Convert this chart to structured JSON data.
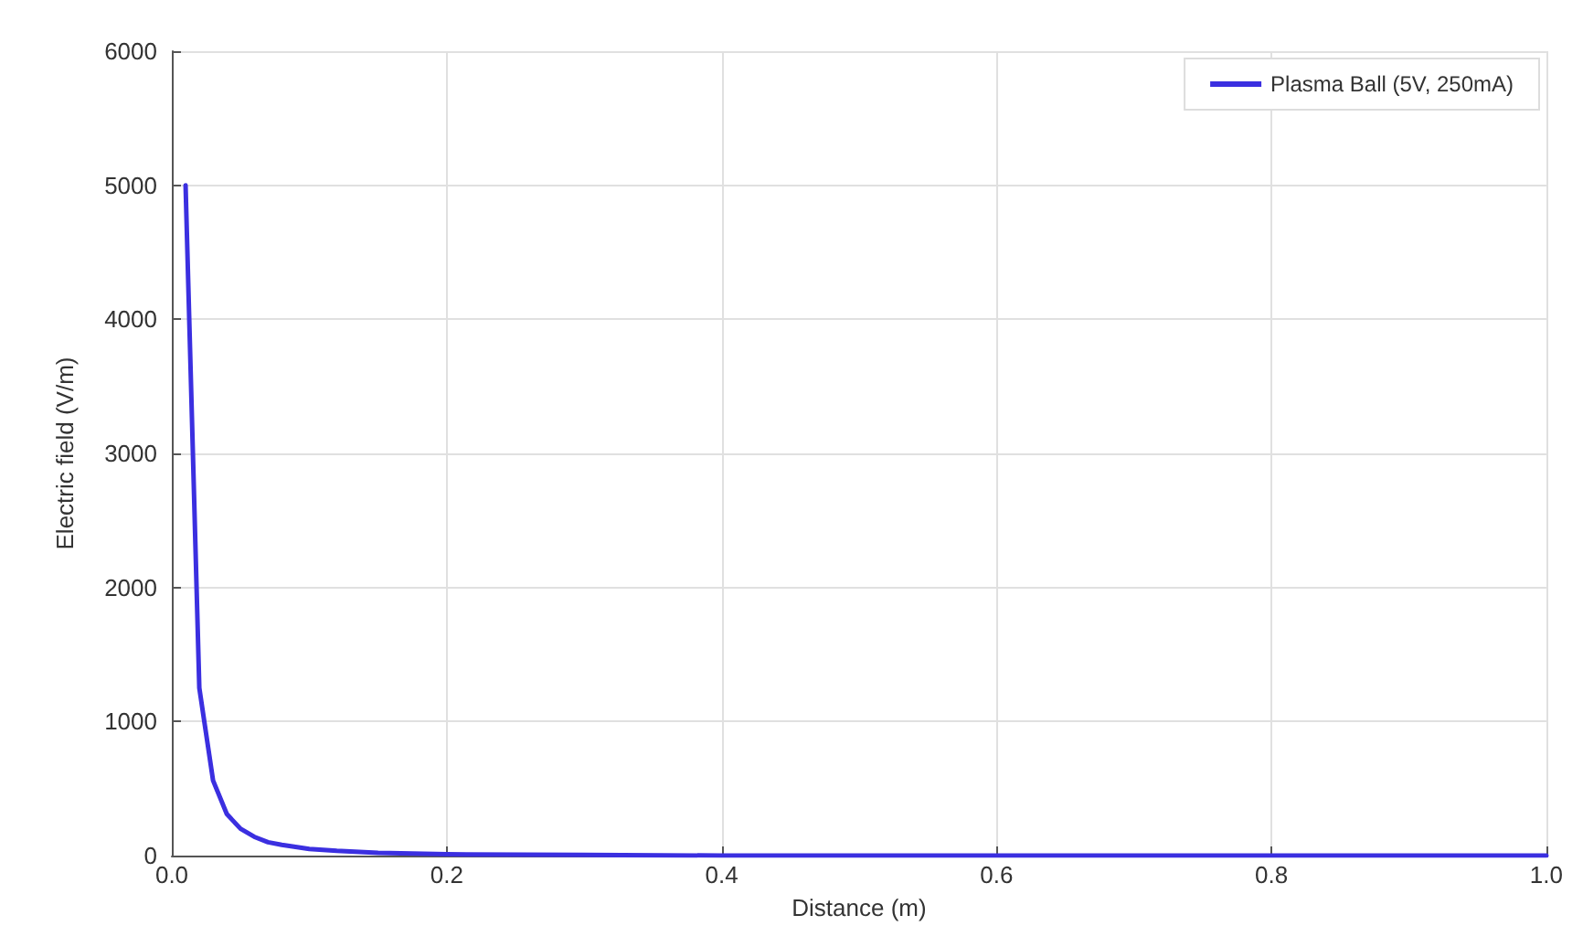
{
  "chart_data": {
    "type": "line",
    "xlabel": "Distance (m)",
    "ylabel": "Electric field (V/m)",
    "x": [
      0.01,
      0.02,
      0.03,
      0.04,
      0.05,
      0.06,
      0.07,
      0.08,
      0.1,
      0.12,
      0.15,
      0.2,
      0.3,
      0.4,
      0.6,
      0.8,
      1.0
    ],
    "series": [
      {
        "name": "Plasma Ball (5V, 250mA)",
        "color": "#3b2fe0",
        "values": [
          5000,
          1250,
          560,
          310,
          200,
          140,
          100,
          80,
          50,
          35,
          20,
          10,
          5,
          0,
          0,
          0,
          0
        ]
      }
    ],
    "xlim": [
      0,
      1
    ],
    "xticks": [
      {
        "value": 0,
        "label": "0.0"
      },
      0.2,
      0.4,
      0.6,
      0.8,
      {
        "value": 1,
        "label": "1.0"
      }
    ],
    "ylim": [
      0,
      6000
    ],
    "yticks": [
      0,
      1000,
      2000,
      3000,
      4000,
      5000,
      6000
    ],
    "grid": true,
    "legend": "top right",
    "marker": "none",
    "line_style": "solid"
  }
}
